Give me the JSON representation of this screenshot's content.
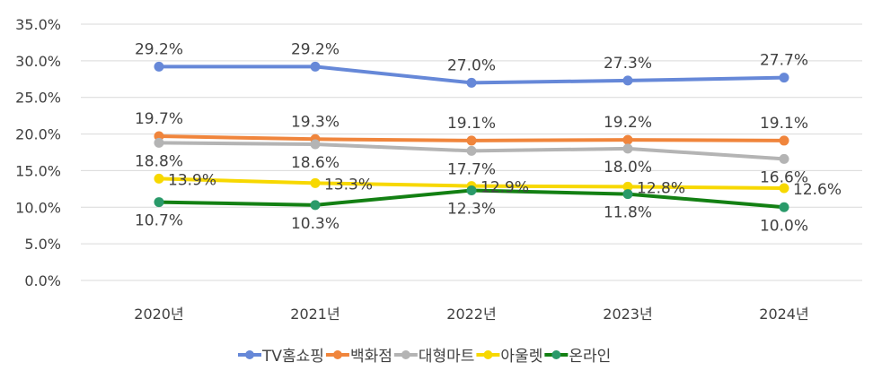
{
  "chart_data": {
    "type": "line",
    "categories": [
      "2020년",
      "2021년",
      "2022년",
      "2023년",
      "2024년"
    ],
    "ylim": [
      0,
      35
    ],
    "yticks": [
      "0.0%",
      "5.0%",
      "10.0%",
      "15.0%",
      "20.0%",
      "25.0%",
      "30.0%",
      "35.0%"
    ],
    "grid": true,
    "legend": "bottom",
    "series": [
      {
        "name": "TV홈쇼핑",
        "values": [
          29.2,
          29.2,
          27.0,
          27.3,
          27.7
        ],
        "labels": [
          "29.2%",
          "29.2%",
          "27.0%",
          "27.3%",
          "27.7%"
        ],
        "color": "#6688d8",
        "marker": "#6688d8",
        "label_pos": "above"
      },
      {
        "name": "백화점",
        "values": [
          19.7,
          19.3,
          19.1,
          19.2,
          19.1
        ],
        "labels": [
          "19.7%",
          "19.3%",
          "19.1%",
          "19.2%",
          "19.1%"
        ],
        "color": "#f0853c",
        "marker": "#f0853c",
        "label_pos": "above"
      },
      {
        "name": "대형마트",
        "values": [
          18.8,
          18.6,
          17.7,
          18.0,
          16.6
        ],
        "labels": [
          "18.8%",
          "18.6%",
          "17.7%",
          "18.0%",
          "16.6%"
        ],
        "color": "#b4b4b4",
        "marker": "#b4b4b4",
        "label_pos": "below"
      },
      {
        "name": "아울렛",
        "values": [
          13.9,
          13.3,
          12.9,
          12.8,
          12.6
        ],
        "labels": [
          "13.9%",
          "13.3%",
          "12.9%",
          "12.8%",
          "12.6%"
        ],
        "color": "#f7d800",
        "marker": "#f7d800",
        "label_pos": "right"
      },
      {
        "name": "온라인",
        "values": [
          10.7,
          10.3,
          12.3,
          11.8,
          10.0
        ],
        "labels": [
          "10.7%",
          "10.3%",
          "12.3%",
          "11.8%",
          "10.0%"
        ],
        "color": "#138013",
        "marker": "#2a9a6a",
        "label_pos": "below"
      }
    ]
  }
}
